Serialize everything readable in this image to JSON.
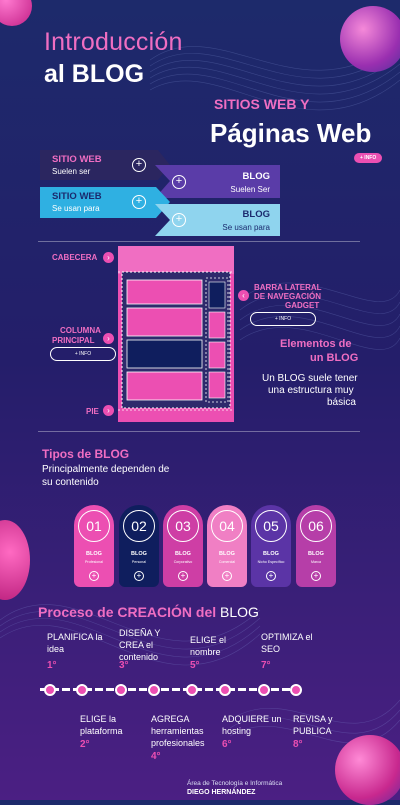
{
  "header": {
    "title_line1": "Introducción",
    "title_line2": "al BLOG"
  },
  "sitios": {
    "line1": "SITIOS WEB Y",
    "line2": "Páginas Web",
    "info": "+ INFO"
  },
  "blocks": [
    {
      "title": "SITIO WEB",
      "sub": "Suelen ser"
    },
    {
      "title": "BLOG",
      "sub": "Suelen Ser"
    },
    {
      "title": "SITIO WEB",
      "sub": "Se usan para"
    },
    {
      "title": "BLOG",
      "sub": "Se usan para"
    }
  ],
  "diagram": {
    "cabecera": "CABECERA",
    "barra_lateral": [
      "BARRA LATERAL",
      "DE NAVEGACIÓN",
      "GADGET"
    ],
    "columna": [
      "COLUMNA",
      "PRINCIPAL"
    ],
    "pie": "PIE",
    "info": "+ INFO",
    "elementos_title": [
      "Elementos de",
      "un BLOG"
    ],
    "elementos_desc": [
      "Un BLOG suele tener",
      "una estructura muy",
      "básica"
    ]
  },
  "tipos": {
    "title": "Tipos de BLOG",
    "desc": [
      "Principalmente dependen de",
      "su contenido"
    ],
    "items": [
      {
        "num": "01",
        "name": "BLOG",
        "sub": "Profesional",
        "color": "#ec4fb2"
      },
      {
        "num": "02",
        "name": "BLOG",
        "sub": "Personal",
        "color": "#0f1e5e"
      },
      {
        "num": "03",
        "name": "BLOG",
        "sub": "Corporativo",
        "color": "#ce3ea5"
      },
      {
        "num": "04",
        "name": "BLOG",
        "sub": "Comercial",
        "color": "#f07fc4"
      },
      {
        "num": "05",
        "name": "BLOG",
        "sub": "Nicho Específico",
        "color": "#5b34a6"
      },
      {
        "num": "06",
        "name": "BLOG",
        "sub": "Marca",
        "color": "#b63ea8"
      }
    ]
  },
  "proceso": {
    "title_pink": "Proceso de CREACIÓN del",
    "title_white": "BLOG",
    "top_steps": [
      {
        "lines": [
          "PLANIFICA la",
          "idea"
        ],
        "ord": "1°"
      },
      {
        "lines": [
          "DISEÑA Y",
          "CREA el",
          "contenido"
        ],
        "ord": "3°"
      },
      {
        "lines": [
          "ELIGE el",
          "nombre"
        ],
        "ord": "5°"
      },
      {
        "lines": [
          "OPTIMIZA el",
          "SEO"
        ],
        "ord": "7°"
      }
    ],
    "bottom_steps": [
      {
        "lines": [
          "ELIGE la",
          "plataforma"
        ],
        "ord": "2°"
      },
      {
        "lines": [
          "AGREGA",
          "herramientas",
          "profesionales"
        ],
        "ord": "4°"
      },
      {
        "lines": [
          "ADQUIERE un",
          "hosting"
        ],
        "ord": "6°"
      },
      {
        "lines": [
          "REVISA y",
          "PUBLICA"
        ],
        "ord": "8°"
      }
    ]
  },
  "footer": {
    "line1": "Área de Tecnología e Informática",
    "line2": "DIEGO HERNÁNDEZ"
  }
}
